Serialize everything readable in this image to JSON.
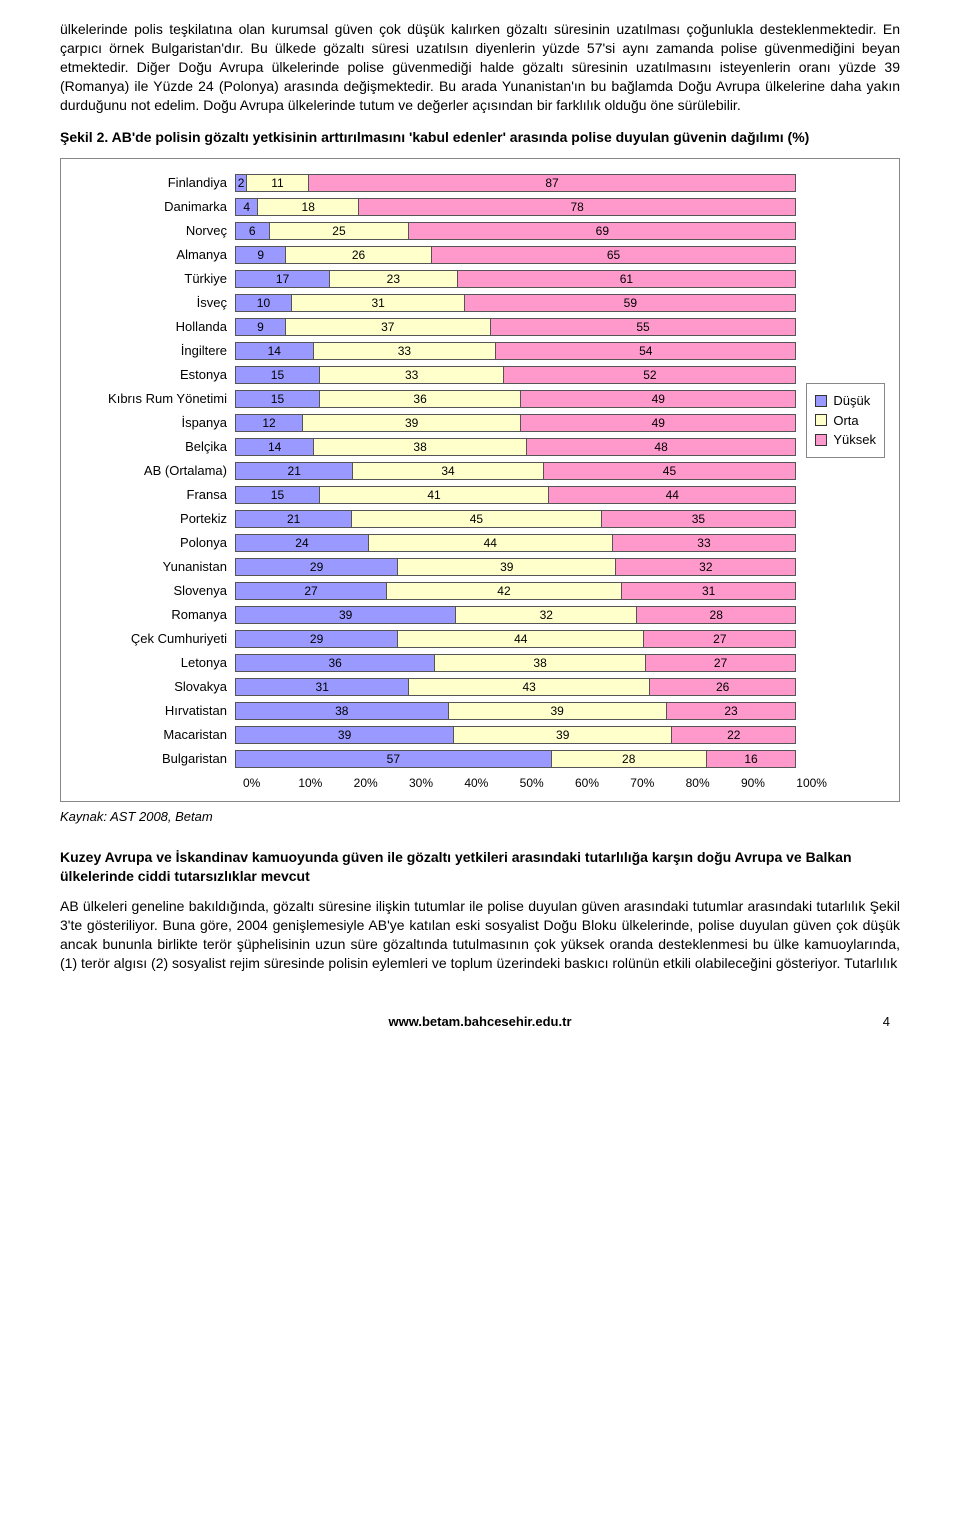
{
  "paragraphs": {
    "p1": "ülkelerinde polis teşkilatına olan kurumsal güven çok düşük kalırken gözaltı süresinin uzatılması çoğunlukla desteklenmektedir. En çarpıcı örnek Bulgaristan'dır. Bu ülkede gözaltı süresi uzatılsın diyenlerin yüzde 57'si aynı zamanda polise güvenmediğini beyan etmektedir. Diğer Doğu Avrupa ülkelerinde polise güvenmediği halde gözaltı süresinin uzatılmasını isteyenlerin oranı yüzde 39 (Romanya) ile Yüzde 24 (Polonya) arasında değişmektedir. Bu arada Yunanistan'ın bu bağlamda Doğu Avrupa ülkelerine daha yakın durduğunu not edelim. Doğu Avrupa ülkelerinde tutum ve değerler açısından bir farklılık olduğu öne sürülebilir.",
    "fig_title": "Şekil 2. AB'de polisin gözaltı yetkisinin arttırılmasını 'kabul edenler' arasında polise duyulan güvenin dağılımı (%)",
    "source": "Kaynak: AST 2008, Betam",
    "sub_head": "Kuzey Avrupa ve İskandinav kamuoyunda güven ile gözaltı yetkileri arasındaki tutarlılığa karşın doğu Avrupa ve Balkan ülkelerinde ciddi tutarsızlıklar mevcut",
    "p2": "AB ülkeleri geneline bakıldığında, gözaltı süresine ilişkin tutumlar ile polise duyulan güven arasındaki tutumlar arasındaki tutarlılık Şekil 3'te gösteriliyor. Buna göre, 2004 genişlemesiyle AB'ye katılan eski sosyalist Doğu Bloku ülkelerinde, polise duyulan güven çok düşük ancak bununla birlikte terör şüphelisinin uzun süre gözaltında tutulmasının çok yüksek oranda desteklenmesi bu ülke kamuoylarında, (1) terör algısı (2) sosyalist rejim süresinde polisin eylemleri ve toplum üzerindeki baskıcı rolünün etkili olabileceğini gösteriyor. Tutarlılık"
  },
  "chart": {
    "type": "stacked-bar-horizontal",
    "colors": {
      "low": "#9999ff",
      "mid": "#ffffcc",
      "high": "#ff99cc",
      "border": "#555555",
      "bg": "#ffffff"
    },
    "legend": [
      {
        "label": "Düşük",
        "color": "#9999ff"
      },
      {
        "label": "Orta",
        "color": "#ffffcc"
      },
      {
        "label": "Yüksek",
        "color": "#ff99cc"
      }
    ],
    "axis_ticks": [
      "0%",
      "10%",
      "20%",
      "30%",
      "40%",
      "50%",
      "60%",
      "70%",
      "80%",
      "90%",
      "100%"
    ],
    "rows": [
      {
        "label": "Finlandiya",
        "v": [
          2,
          11,
          87
        ]
      },
      {
        "label": "Danimarka",
        "v": [
          4,
          18,
          78
        ]
      },
      {
        "label": "Norveç",
        "v": [
          6,
          25,
          69
        ]
      },
      {
        "label": "Almanya",
        "v": [
          9,
          26,
          65
        ]
      },
      {
        "label": "Türkiye",
        "v": [
          17,
          23,
          61
        ]
      },
      {
        "label": "İsveç",
        "v": [
          10,
          31,
          59
        ]
      },
      {
        "label": "Hollanda",
        "v": [
          9,
          37,
          55
        ]
      },
      {
        "label": "İngiltere",
        "v": [
          14,
          33,
          54
        ]
      },
      {
        "label": "Estonya",
        "v": [
          15,
          33,
          52
        ]
      },
      {
        "label": "Kıbrıs Rum Yönetimi",
        "v": [
          15,
          36,
          49
        ]
      },
      {
        "label": "İspanya",
        "v": [
          12,
          39,
          49
        ]
      },
      {
        "label": "Belçika",
        "v": [
          14,
          38,
          48
        ]
      },
      {
        "label": "AB (Ortalama)",
        "v": [
          21,
          34,
          45
        ]
      },
      {
        "label": "Fransa",
        "v": [
          15,
          41,
          44
        ]
      },
      {
        "label": "Portekiz",
        "v": [
          21,
          45,
          35
        ]
      },
      {
        "label": "Polonya",
        "v": [
          24,
          44,
          33
        ]
      },
      {
        "label": "Yunanistan",
        "v": [
          29,
          39,
          32
        ]
      },
      {
        "label": "Slovenya",
        "v": [
          27,
          42,
          31
        ]
      },
      {
        "label": "Romanya",
        "v": [
          39,
          32,
          28
        ]
      },
      {
        "label": "Çek Cumhuriyeti",
        "v": [
          29,
          44,
          27
        ]
      },
      {
        "label": "Letonya",
        "v": [
          36,
          38,
          27
        ]
      },
      {
        "label": "Slovakya",
        "v": [
          31,
          43,
          26
        ]
      },
      {
        "label": "Hırvatistan",
        "v": [
          38,
          39,
          23
        ]
      },
      {
        "label": "Macaristan",
        "v": [
          39,
          39,
          22
        ]
      },
      {
        "label": "Bulgaristan",
        "v": [
          57,
          28,
          16
        ]
      }
    ]
  },
  "footer": {
    "url": "www.betam.bahcesehir.edu.tr",
    "page": "4"
  }
}
